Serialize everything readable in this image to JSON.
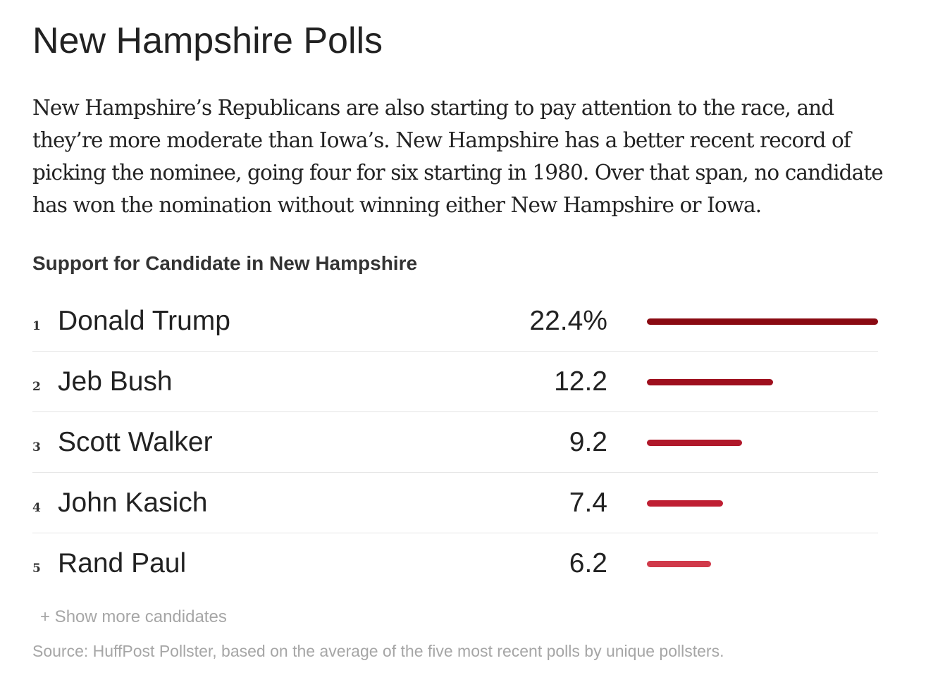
{
  "article": {
    "heading": "New Hampshire Polls",
    "paragraph_lines": [
      "New Hampshire’s Republicans are also starting to pay attention to the race, and",
      "they’re more moderate than Iowa’s. New Hampshire has a better recent record of",
      "picking the nominee, going four for six starting in 1980. Over that span, no candidate",
      "has won the nomination without winning either New Hampshire or Iowa."
    ]
  },
  "chart_data": {
    "type": "bar",
    "orientation": "horizontal",
    "title": "Support for Candidate in New Hampshire",
    "ranks": [
      "1",
      "2",
      "3",
      "4",
      "5"
    ],
    "categories": [
      "Donald Trump",
      "Jeb Bush",
      "Scott Walker",
      "John Kasich",
      "Rand Paul"
    ],
    "values": [
      22.4,
      12.2,
      9.2,
      7.4,
      6.2
    ],
    "value_labels": [
      "22.4%",
      "12.2",
      "9.2",
      "7.4",
      "6.2"
    ],
    "unit": "%",
    "xlim": [
      0,
      22.4
    ],
    "grid": false,
    "bar_colors": [
      "#8a0a12",
      "#9e0f1d",
      "#b0182a",
      "#bf1f33",
      "#d03a4a"
    ]
  },
  "footer": {
    "show_more": "+ Show more candidates",
    "source": "Source: HuffPost Pollster, based on the average of the five most recent polls by unique pollsters."
  }
}
